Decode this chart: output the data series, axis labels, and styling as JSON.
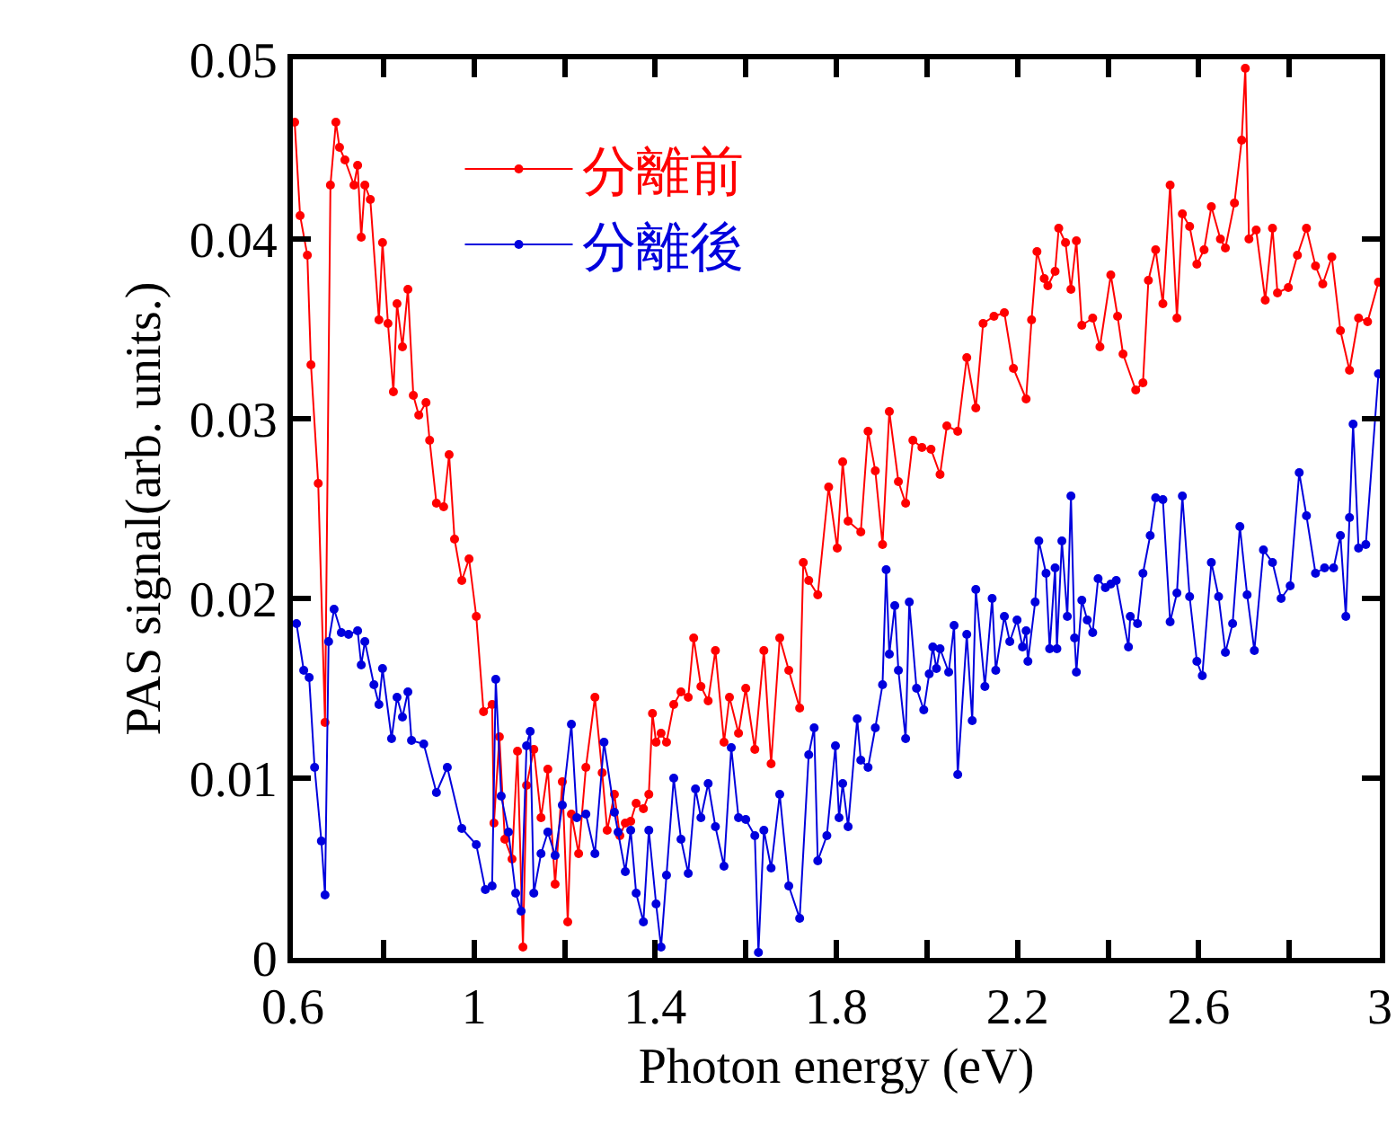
{
  "chart_data": {
    "type": "line",
    "xlabel": "Photon energy (eV)",
    "ylabel": "PAS signal(arb. units.)",
    "xlim": [
      0.6,
      3.0
    ],
    "xticks": [
      0.6,
      {
        "value": 0.8,
        "label": null
      },
      1,
      {
        "value": 1.2,
        "label": null
      },
      1.4,
      {
        "value": 1.6,
        "label": null
      },
      1.8,
      {
        "value": 2.0,
        "label": null
      },
      2.2,
      {
        "value": 2.4,
        "label": null
      },
      2.6,
      {
        "value": 2.8,
        "label": null
      },
      3
    ],
    "ylim": [
      0,
      0.05
    ],
    "yticks": [
      0,
      0.01,
      0.02,
      0.03,
      0.04,
      0.05
    ],
    "grid": false,
    "legend": "top left",
    "marker": "circle",
    "line_style": "solid",
    "series": [
      {
        "name": "分離前",
        "color": "#ff0000",
        "x": [
          0.604,
          0.616,
          0.632,
          0.64,
          0.656,
          0.671,
          0.683,
          0.695,
          0.703,
          0.715,
          0.735,
          0.743,
          0.751,
          0.759,
          0.771,
          0.79,
          0.798,
          0.81,
          0.822,
          0.83,
          0.842,
          0.854,
          0.866,
          0.878,
          0.894,
          0.902,
          0.917,
          0.933,
          0.945,
          0.957,
          0.973,
          0.989,
          1.005,
          1.021,
          1.04,
          1.044,
          1.056,
          1.068,
          1.084,
          1.096,
          1.108,
          1.116,
          1.132,
          1.148,
          1.163,
          1.179,
          1.195,
          1.207,
          1.215,
          1.231,
          1.247,
          1.267,
          1.283,
          1.294,
          1.31,
          1.322,
          1.334,
          1.346,
          1.358,
          1.374,
          1.386,
          1.394,
          1.402,
          1.413,
          1.425,
          1.441,
          1.457,
          1.473,
          1.485,
          1.501,
          1.517,
          1.533,
          1.552,
          1.564,
          1.584,
          1.6,
          1.62,
          1.64,
          1.656,
          1.675,
          1.695,
          1.719,
          1.727,
          1.739,
          1.759,
          1.783,
          1.802,
          1.814,
          1.826,
          1.854,
          1.87,
          1.886,
          1.902,
          1.917,
          1.937,
          1.953,
          1.969,
          1.989,
          2.009,
          2.029,
          2.044,
          2.068,
          2.088,
          2.108,
          2.124,
          2.148,
          2.171,
          2.191,
          2.219,
          2.231,
          2.243,
          2.259,
          2.267,
          2.283,
          2.291,
          2.306,
          2.318,
          2.33,
          2.342,
          2.366,
          2.382,
          2.406,
          2.421,
          2.433,
          2.461,
          2.477,
          2.489,
          2.505,
          2.521,
          2.537,
          2.552,
          2.564,
          2.58,
          2.596,
          2.612,
          2.628,
          2.648,
          2.659,
          2.679,
          2.695,
          2.703,
          2.711,
          2.727,
          2.747,
          2.763,
          2.774,
          2.798,
          2.818,
          2.838,
          2.858,
          2.874,
          2.894,
          2.913,
          2.933,
          2.953,
          2.973,
          2.997
        ],
        "values": [
          0.0465,
          0.0413,
          0.0391,
          0.033,
          0.0264,
          0.0131,
          0.043,
          0.0465,
          0.0451,
          0.0444,
          0.043,
          0.0441,
          0.0401,
          0.043,
          0.0422,
          0.0355,
          0.0398,
          0.0353,
          0.0315,
          0.0364,
          0.034,
          0.0372,
          0.0313,
          0.0302,
          0.0309,
          0.0288,
          0.0253,
          0.0251,
          0.028,
          0.0233,
          0.021,
          0.0222,
          0.019,
          0.0137,
          0.0141,
          0.0075,
          0.0123,
          0.0066,
          0.0055,
          0.0115,
          0.0006,
          0.0096,
          0.0116,
          0.0078,
          0.0105,
          0.0041,
          0.0098,
          0.002,
          0.008,
          0.0058,
          0.0106,
          0.0145,
          0.0103,
          0.0071,
          0.0091,
          0.0068,
          0.0075,
          0.0076,
          0.0086,
          0.0083,
          0.0091,
          0.0136,
          0.012,
          0.0125,
          0.012,
          0.0141,
          0.0148,
          0.0145,
          0.0178,
          0.0151,
          0.0143,
          0.0171,
          0.012,
          0.0145,
          0.0125,
          0.015,
          0.0116,
          0.0171,
          0.0108,
          0.0178,
          0.016,
          0.0139,
          0.022,
          0.021,
          0.0202,
          0.0262,
          0.0228,
          0.0276,
          0.0243,
          0.0237,
          0.0293,
          0.0271,
          0.023,
          0.0304,
          0.0265,
          0.0253,
          0.0288,
          0.0284,
          0.0283,
          0.0269,
          0.0296,
          0.0293,
          0.0334,
          0.0306,
          0.0353,
          0.0357,
          0.0359,
          0.0328,
          0.0311,
          0.0355,
          0.0393,
          0.0378,
          0.0374,
          0.0382,
          0.0406,
          0.0398,
          0.0372,
          0.0399,
          0.0352,
          0.0356,
          0.034,
          0.038,
          0.0357,
          0.0336,
          0.0316,
          0.032,
          0.0377,
          0.0394,
          0.0364,
          0.043,
          0.0356,
          0.0414,
          0.0407,
          0.0386,
          0.0394,
          0.0418,
          0.04,
          0.0395,
          0.042,
          0.0455,
          0.0495,
          0.04,
          0.0405,
          0.0366,
          0.0406,
          0.037,
          0.0373,
          0.0391,
          0.0406,
          0.0385,
          0.0375,
          0.039,
          0.0349,
          0.0327,
          0.0356,
          0.0354,
          0.0376
        ]
      },
      {
        "name": "分離後",
        "color": "#0000dd",
        "x": [
          0.608,
          0.624,
          0.636,
          0.648,
          0.663,
          0.671,
          0.679,
          0.691,
          0.707,
          0.723,
          0.743,
          0.751,
          0.759,
          0.779,
          0.79,
          0.798,
          0.818,
          0.83,
          0.842,
          0.854,
          0.862,
          0.889,
          0.917,
          0.941,
          0.973,
          1.005,
          1.025,
          1.04,
          1.048,
          1.06,
          1.076,
          1.092,
          1.104,
          1.116,
          1.124,
          1.132,
          1.148,
          1.163,
          1.179,
          1.195,
          1.215,
          1.227,
          1.247,
          1.267,
          1.287,
          1.31,
          1.318,
          1.334,
          1.346,
          1.358,
          1.374,
          1.386,
          1.402,
          1.413,
          1.425,
          1.441,
          1.457,
          1.473,
          1.489,
          1.501,
          1.517,
          1.533,
          1.552,
          1.568,
          1.584,
          1.6,
          1.62,
          1.628,
          1.64,
          1.656,
          1.675,
          1.695,
          1.719,
          1.739,
          1.751,
          1.759,
          1.779,
          1.798,
          1.806,
          1.814,
          1.826,
          1.846,
          1.854,
          1.87,
          1.886,
          1.902,
          1.91,
          1.917,
          1.929,
          1.937,
          1.953,
          1.961,
          1.977,
          1.993,
          2.005,
          2.013,
          2.021,
          2.029,
          2.048,
          2.06,
          2.068,
          2.088,
          2.1,
          2.108,
          2.128,
          2.144,
          2.152,
          2.171,
          2.183,
          2.199,
          2.211,
          2.219,
          2.223,
          2.239,
          2.247,
          2.263,
          2.271,
          2.283,
          2.287,
          2.298,
          2.31,
          2.318,
          2.326,
          2.33,
          2.342,
          2.354,
          2.366,
          2.378,
          2.394,
          2.406,
          2.418,
          2.445,
          2.449,
          2.465,
          2.477,
          2.493,
          2.505,
          2.521,
          2.537,
          2.552,
          2.564,
          2.58,
          2.596,
          2.608,
          2.628,
          2.644,
          2.659,
          2.675,
          2.691,
          2.707,
          2.723,
          2.743,
          2.763,
          2.782,
          2.802,
          2.822,
          2.838,
          2.858,
          2.878,
          2.898,
          2.913,
          2.925,
          2.933,
          2.941,
          2.953,
          2.969,
          2.997
        ],
        "values": [
          0.0186,
          0.016,
          0.0156,
          0.0106,
          0.0065,
          0.0035,
          0.0176,
          0.0194,
          0.0181,
          0.018,
          0.0182,
          0.0163,
          0.0176,
          0.0152,
          0.0141,
          0.0161,
          0.0122,
          0.0145,
          0.0134,
          0.0148,
          0.0121,
          0.0119,
          0.0092,
          0.0106,
          0.0072,
          0.0063,
          0.0038,
          0.004,
          0.0155,
          0.009,
          0.007,
          0.0036,
          0.0026,
          0.0118,
          0.0126,
          0.0036,
          0.0058,
          0.007,
          0.0057,
          0.0085,
          0.013,
          0.0078,
          0.008,
          0.0058,
          0.012,
          0.0081,
          0.007,
          0.0048,
          0.0071,
          0.0036,
          0.002,
          0.0071,
          0.003,
          0.0006,
          0.0046,
          0.01,
          0.0066,
          0.0047,
          0.0094,
          0.0078,
          0.0097,
          0.0073,
          0.0051,
          0.0117,
          0.0078,
          0.0077,
          0.0068,
          0.0003,
          0.0071,
          0.005,
          0.0091,
          0.004,
          0.0022,
          0.0113,
          0.0128,
          0.0054,
          0.0068,
          0.0118,
          0.0078,
          0.0097,
          0.0073,
          0.0133,
          0.011,
          0.0106,
          0.0128,
          0.0152,
          0.0216,
          0.0169,
          0.0196,
          0.016,
          0.0122,
          0.0198,
          0.015,
          0.0138,
          0.0158,
          0.0173,
          0.0161,
          0.0172,
          0.0159,
          0.0185,
          0.0102,
          0.018,
          0.0132,
          0.0205,
          0.0151,
          0.02,
          0.016,
          0.019,
          0.0176,
          0.0188,
          0.0173,
          0.0182,
          0.0165,
          0.0198,
          0.0232,
          0.0214,
          0.0172,
          0.0217,
          0.0172,
          0.0232,
          0.019,
          0.0257,
          0.0178,
          0.0159,
          0.0199,
          0.0188,
          0.0181,
          0.0211,
          0.0206,
          0.0208,
          0.021,
          0.0173,
          0.019,
          0.0186,
          0.0214,
          0.0235,
          0.0256,
          0.0255,
          0.0187,
          0.0203,
          0.0257,
          0.0201,
          0.0165,
          0.0157,
          0.022,
          0.0201,
          0.017,
          0.0186,
          0.024,
          0.0202,
          0.0171,
          0.0227,
          0.022,
          0.02,
          0.0207,
          0.027,
          0.0246,
          0.0214,
          0.0217,
          0.0217,
          0.0235,
          0.019,
          0.0245,
          0.0297,
          0.0228,
          0.023,
          0.0325
        ]
      }
    ]
  }
}
